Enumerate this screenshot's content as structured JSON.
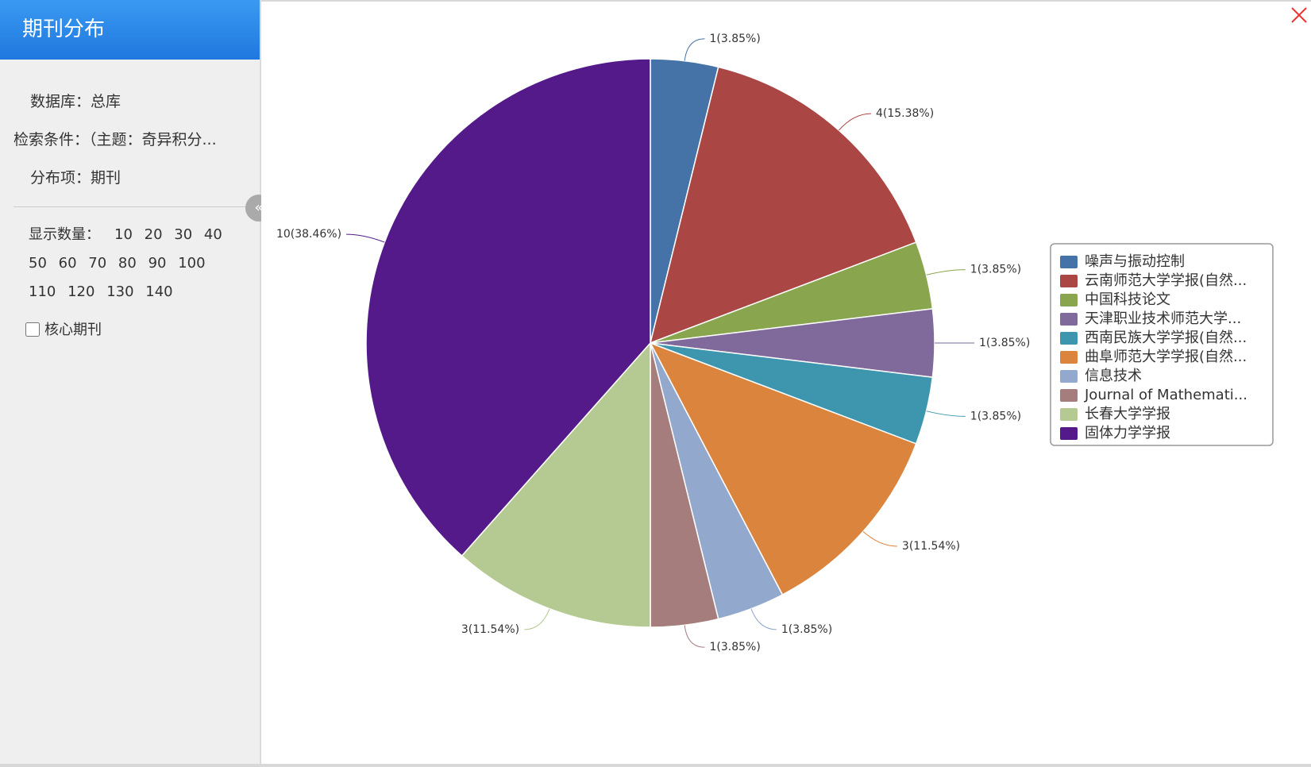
{
  "sidebar": {
    "title": "期刊分布",
    "database": "数据库：总库",
    "query": "检索条件：（主题：奇异积分...",
    "field": "分布项：期刊",
    "count_label": "显示数量：",
    "counts": [
      "10",
      "20",
      "30",
      "40",
      "50",
      "60",
      "70",
      "80",
      "90",
      "100",
      "110",
      "120",
      "130",
      "140"
    ],
    "core_label": "核心期刊"
  },
  "chart_data": {
    "type": "pie",
    "categories": [
      "噪声与振动控制",
      "云南师范大学学报(自然...",
      "中国科技论文",
      "天津职业技术师范大学...",
      "西南民族大学学报(自然...",
      "曲阜师范大学学报(自然...",
      "信息技术",
      "Journal of Mathemati...",
      "长春大学学报",
      "固体力学学报"
    ],
    "values": [
      1,
      4,
      1,
      1,
      1,
      3,
      1,
      1,
      3,
      10
    ],
    "value_labels": [
      "1(3.85%)",
      "4(15.38%)",
      "1(3.85%)",
      "1(3.85%)",
      "1(3.85%)",
      "3(11.54%)",
      "1(3.85%)",
      "1(3.85%)",
      "3(11.54%)",
      "10(38.46%)"
    ],
    "colors": [
      "#4572a7",
      "#aa4643",
      "#89a54e",
      "#80699b",
      "#3d96ae",
      "#db843d",
      "#92a8cd",
      "#a47d7c",
      "#b5ca92",
      "#541a8a"
    ],
    "legend": "right"
  }
}
